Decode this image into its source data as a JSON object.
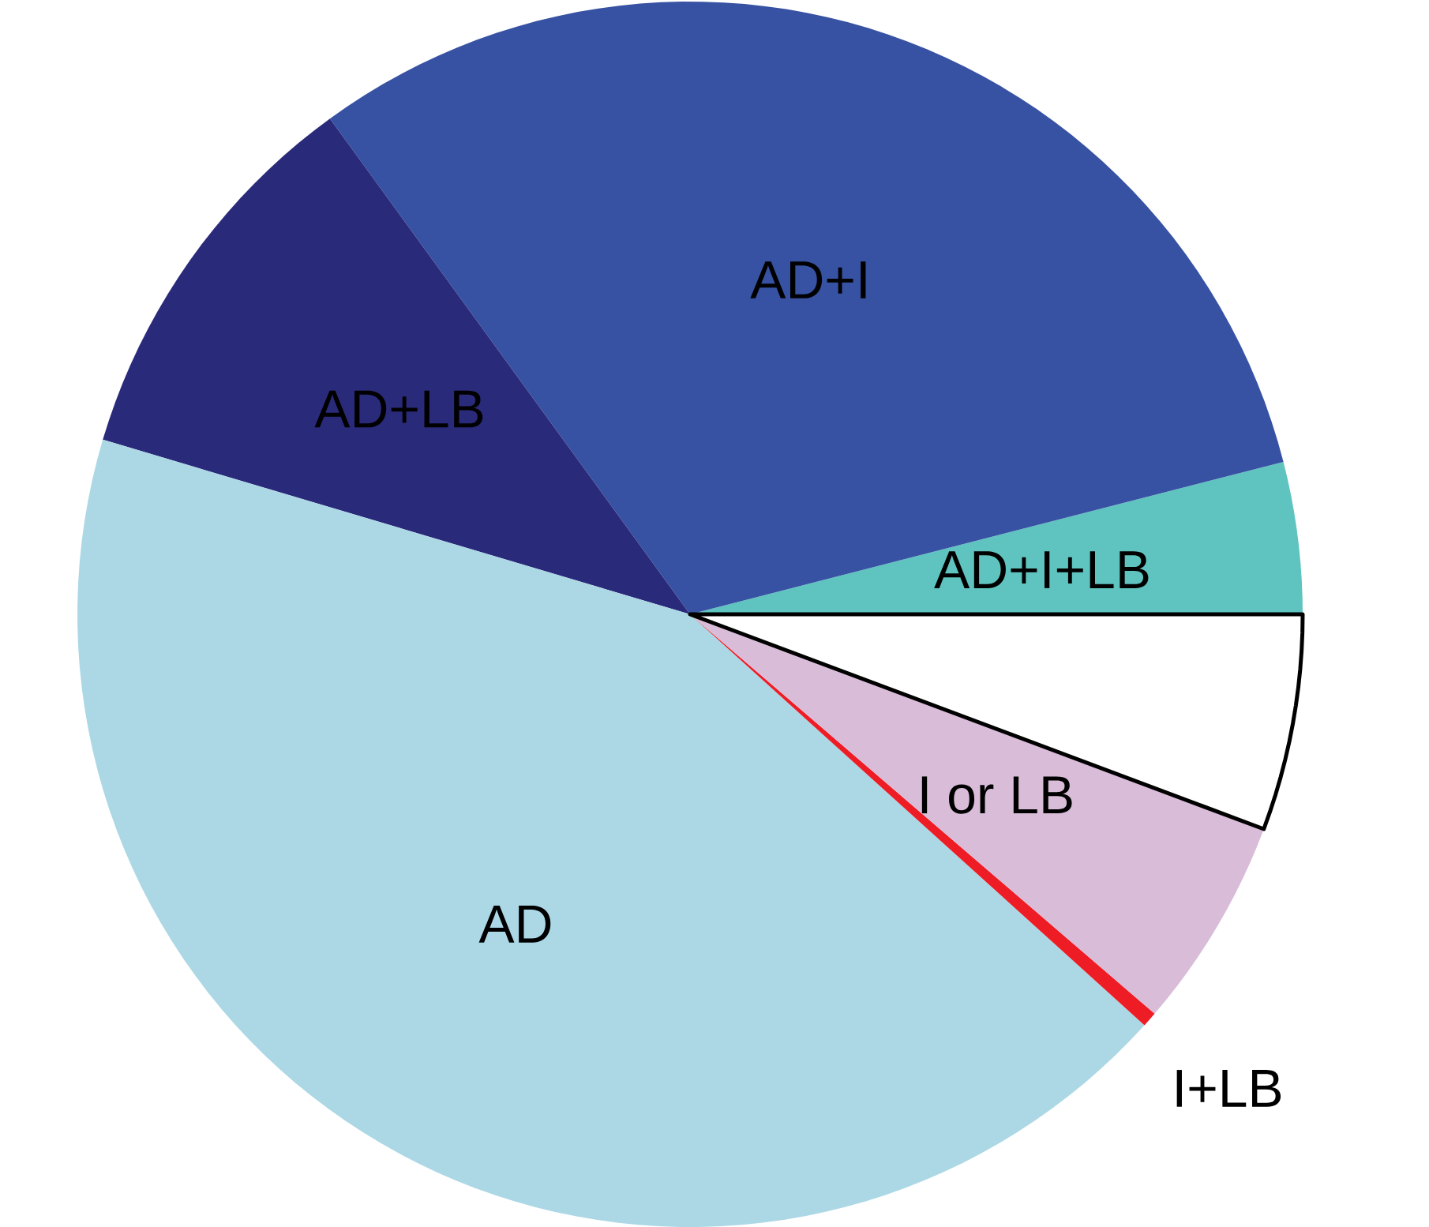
{
  "chart_data": {
    "type": "pie",
    "categories": [
      "AD+I+LB",
      "AD+I",
      "AD+LB",
      "AD",
      "I+LB",
      "I or LB",
      null
    ],
    "values": [
      4.0,
      31.0,
      10.4,
      42.9,
      0.4,
      5.6,
      5.7
    ],
    "colors": [
      "#5fc4c0",
      "#3752a3",
      "#2a2a7a",
      "#acd8e6",
      "#ee1c25",
      "#d8bcd8",
      "#ffffff"
    ]
  }
}
